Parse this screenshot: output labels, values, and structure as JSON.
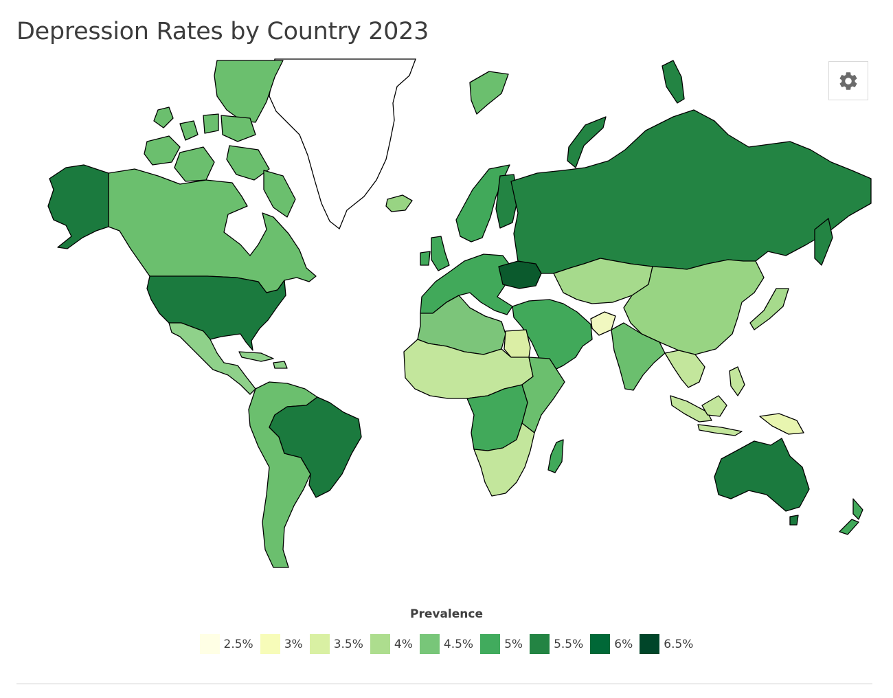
{
  "title": "Depression Rates by Country 2023",
  "legend": {
    "title": "Prevalence",
    "items": [
      {
        "label": "2.5%",
        "color": "#ffffe5"
      },
      {
        "label": "3%",
        "color": "#f7fcb9"
      },
      {
        "label": "3.5%",
        "color": "#d9f0a3"
      },
      {
        "label": "4%",
        "color": "#addd8e"
      },
      {
        "label": "4.5%",
        "color": "#78c679"
      },
      {
        "label": "5%",
        "color": "#41ab5d"
      },
      {
        "label": "5.5%",
        "color": "#238443"
      },
      {
        "label": "6%",
        "color": "#006837"
      },
      {
        "label": "6.5%",
        "color": "#004529"
      }
    ]
  },
  "settings": {
    "icon": "gear-icon"
  },
  "regions": [
    {
      "name": "Canada",
      "color": "#6bbf6e"
    },
    {
      "name": "United States",
      "color": "#1b7a3e"
    },
    {
      "name": "Alaska",
      "color": "#1b7a3e"
    },
    {
      "name": "Mexico",
      "color": "#8fd18a"
    },
    {
      "name": "Brazil",
      "color": "#1b7a3e"
    },
    {
      "name": "South America West",
      "color": "#6bbf6e"
    },
    {
      "name": "Europe",
      "color": "#41a95a"
    },
    {
      "name": "Ukraine",
      "color": "#0b5a2d"
    },
    {
      "name": "Russia",
      "color": "#238443"
    },
    {
      "name": "China",
      "color": "#98d483"
    },
    {
      "name": "Central Asia",
      "color": "#a6da8c"
    },
    {
      "name": "Middle East",
      "color": "#41a95a"
    },
    {
      "name": "India",
      "color": "#6bbf6e"
    },
    {
      "name": "North Africa",
      "color": "#7cc57a"
    },
    {
      "name": "Egypt",
      "color": "#dbeea5"
    },
    {
      "name": "Sahel",
      "color": "#d9f0a3"
    },
    {
      "name": "Central Africa",
      "color": "#c3e69c"
    },
    {
      "name": "East Africa",
      "color": "#41a95a"
    },
    {
      "name": "Southern Africa",
      "color": "#6bbf6e"
    },
    {
      "name": "Southeast Asia",
      "color": "#c3e69c"
    },
    {
      "name": "Japan",
      "color": "#a6da8c"
    },
    {
      "name": "Australia",
      "color": "#1b7a3e"
    },
    {
      "name": "New Zealand",
      "color": "#41a95a"
    },
    {
      "name": "Madagascar",
      "color": "#41a95a"
    },
    {
      "name": "Iceland",
      "color": "#98d483"
    },
    {
      "name": "Scandinavia",
      "color": "#41a95a"
    },
    {
      "name": "Finland",
      "color": "#238443"
    },
    {
      "name": "Afghanistan",
      "color": "#f1f8c0"
    },
    {
      "name": "Papua New Guinea",
      "color": "#e8f5b0"
    },
    {
      "name": "Arctic Islands",
      "color": "#6bbf6e"
    }
  ]
}
